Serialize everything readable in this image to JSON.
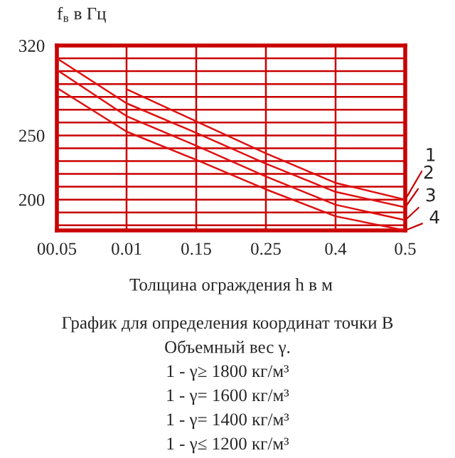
{
  "chart_data": {
    "type": "line",
    "ylabel": "f$_{в}$ в Гц",
    "xlabel": "Толщина ограждения h в м",
    "categories": [
      "00.05",
      "0.01",
      "0.15",
      "0.25",
      "0.4",
      "0.5"
    ],
    "ylim": [
      176,
      320
    ],
    "yticks": [
      {
        "value": 180,
        "label": null
      },
      {
        "value": 190,
        "label": null
      },
      200,
      {
        "value": 210,
        "label": null
      },
      {
        "value": 220,
        "label": null
      },
      {
        "value": 230,
        "label": null
      },
      {
        "value": 240,
        "label": null
      },
      250,
      {
        "value": 260,
        "label": null
      },
      {
        "value": 270,
        "label": null
      },
      {
        "value": 280,
        "label": null
      },
      {
        "value": 290,
        "label": null
      },
      {
        "value": 300,
        "label": null
      },
      {
        "value": 310,
        "label": null
      },
      320
    ],
    "grid": true,
    "marker": "none",
    "line_style": "solid",
    "series": [
      {
        "color": "#e01010",
        "values": [
          null,
          286,
          261,
          236,
          213,
          200
        ]
      },
      {
        "color": "#e01010",
        "values": [
          310,
          275,
          252,
          228,
          206,
          194
        ]
      },
      {
        "color": "#e01010",
        "values": [
          301,
          265,
          242,
          218,
          196,
          184
        ]
      },
      {
        "color": "#e01010",
        "values": [
          287,
          253,
          231,
          208,
          187,
          176
        ]
      }
    ],
    "annotations": [
      {
        "text": "1",
        "x": "0.5",
        "y": 200
      },
      {
        "text": "2",
        "x": "0.5",
        "y": 194
      },
      {
        "text": "3",
        "x": "0.5",
        "y": 184
      },
      {
        "text": "4",
        "x": "0.5",
        "y": 176
      },
      "График для определения координат точки В",
      "Объемный вес γ.",
      "1 - γ≥ 1800 кг/м³",
      "1 - γ= 1600 кг/м³",
      "1 - γ= 1400 кг/м³",
      "1 - γ≤ 1200 кг/м³"
    ]
  }
}
